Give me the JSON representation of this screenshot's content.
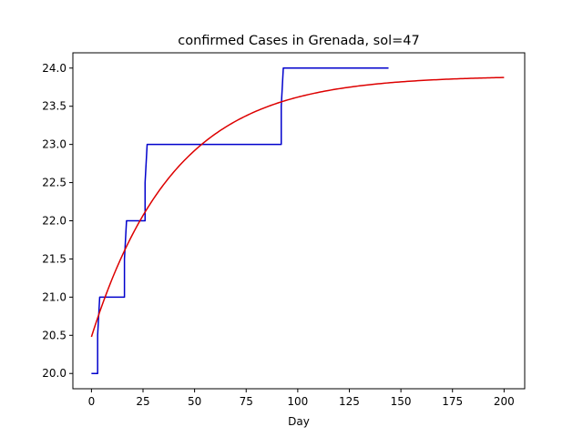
{
  "chart_data": {
    "type": "line",
    "title": "confirmed Cases in Grenada, sol=47",
    "xlabel": "Day",
    "ylabel": "",
    "xlim": [
      -9,
      210
    ],
    "ylim": [
      19.8,
      24.2
    ],
    "xticks": [
      0,
      25,
      50,
      75,
      100,
      125,
      150,
      175,
      200
    ],
    "yticks": [
      20.0,
      20.5,
      21.0,
      21.5,
      22.0,
      22.5,
      23.0,
      23.5,
      24.0
    ],
    "grid": false,
    "series": [
      {
        "color": "#0000cc",
        "x": [
          0,
          3,
          3,
          4,
          4,
          16,
          16,
          17,
          17,
          26,
          26,
          27,
          27,
          92,
          92,
          93,
          93,
          144
        ],
        "y": [
          20,
          20,
          20.5,
          21,
          21,
          21,
          21.5,
          22,
          22,
          22,
          22.5,
          23,
          23,
          23,
          23.5,
          24,
          24,
          24
        ]
      },
      {
        "color": "#dd0000",
        "model": {
          "asymptote": 23.9,
          "start": 20.48,
          "rate": 0.025,
          "x_start": 0,
          "x_end": 200
        }
      }
    ]
  }
}
